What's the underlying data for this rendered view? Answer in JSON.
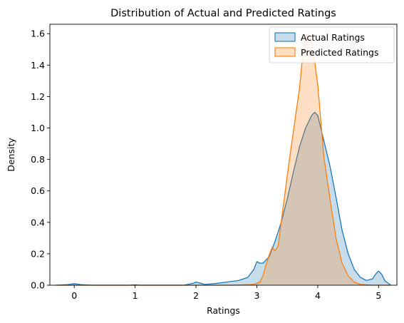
{
  "chart_data": {
    "type": "area",
    "title": "Distribution of Actual and Predicted Ratings",
    "xlabel": "Ratings",
    "ylabel": "Density",
    "xlim": [
      -0.4,
      5.3
    ],
    "ylim": [
      0,
      1.66
    ],
    "xticks": [
      0,
      1,
      2,
      3,
      4,
      5
    ],
    "yticks": [
      0.0,
      0.2,
      0.4,
      0.6,
      0.8,
      1.0,
      1.2,
      1.4,
      1.6
    ],
    "grid": false,
    "legend_position": "top-right",
    "series": [
      {
        "name": "Actual Ratings",
        "color": "#1f77b4",
        "fill": "#1f77b4",
        "x": [
          -0.3,
          -0.1,
          0.0,
          0.1,
          0.3,
          0.9,
          1.0,
          1.1,
          1.8,
          1.95,
          2.0,
          2.05,
          2.15,
          2.3,
          2.5,
          2.7,
          2.85,
          2.95,
          3.0,
          3.05,
          3.1,
          3.2,
          3.3,
          3.4,
          3.5,
          3.6,
          3.7,
          3.8,
          3.9,
          3.95,
          4.0,
          4.1,
          4.2,
          4.3,
          4.4,
          4.5,
          4.6,
          4.7,
          4.8,
          4.9,
          4.95,
          5.0,
          5.05,
          5.1,
          5.2
        ],
        "y": [
          0.0,
          0.004,
          0.01,
          0.004,
          0.0,
          0.0,
          0.003,
          0.0,
          0.0,
          0.012,
          0.02,
          0.015,
          0.005,
          0.01,
          0.02,
          0.03,
          0.05,
          0.1,
          0.15,
          0.14,
          0.14,
          0.18,
          0.28,
          0.4,
          0.55,
          0.72,
          0.88,
          1.0,
          1.08,
          1.1,
          1.08,
          0.92,
          0.76,
          0.56,
          0.35,
          0.2,
          0.1,
          0.05,
          0.03,
          0.04,
          0.07,
          0.09,
          0.07,
          0.03,
          0.0
        ]
      },
      {
        "name": "Predicted Ratings",
        "color": "#ff7f0e",
        "fill": "#ff7f0e",
        "x": [
          -0.3,
          2.6,
          2.95,
          3.05,
          3.1,
          3.15,
          3.2,
          3.25,
          3.3,
          3.35,
          3.4,
          3.5,
          3.6,
          3.7,
          3.75,
          3.8,
          3.85,
          3.9,
          3.95,
          4.0,
          4.05,
          4.1,
          4.2,
          4.3,
          4.4,
          4.5,
          4.6,
          4.7,
          4.9,
          5.2
        ],
        "y": [
          0.0,
          0.0,
          0.005,
          0.02,
          0.06,
          0.13,
          0.19,
          0.24,
          0.22,
          0.25,
          0.4,
          0.7,
          0.98,
          1.25,
          1.45,
          1.58,
          1.6,
          1.55,
          1.42,
          1.28,
          1.05,
          0.82,
          0.55,
          0.3,
          0.14,
          0.06,
          0.02,
          0.005,
          0.0,
          0.0
        ]
      }
    ]
  }
}
